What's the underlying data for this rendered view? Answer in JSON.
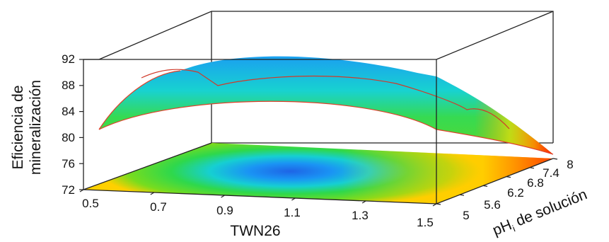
{
  "chart_data": {
    "type": "surface3d",
    "title": "",
    "x_axis": {
      "label": "TWN26",
      "ticks": [
        "0.5",
        "0.7",
        "0.9",
        "1.1",
        "1.3",
        "1.5"
      ],
      "range": [
        0.5,
        1.5
      ]
    },
    "y_axis": {
      "label_main": "pH",
      "label_sub": "i",
      "label_rest": " de solución",
      "ticks": [
        "5",
        "5.6",
        "6.2",
        "6.8",
        "7.4",
        "8"
      ],
      "range": [
        5,
        8
      ]
    },
    "z_axis": {
      "label_line1": "Eficiencia de",
      "label_line2": "mineralización",
      "ticks": [
        "72",
        "76",
        "80",
        "84",
        "88",
        "92"
      ],
      "range": [
        72,
        92
      ]
    },
    "surface_front_edge_pH5": [
      {
        "x": 0.5,
        "z": 80.8
      },
      {
        "x": 0.7,
        "z": 84.2
      },
      {
        "x": 0.9,
        "z": 86.0
      },
      {
        "x": 1.1,
        "z": 86.5
      },
      {
        "x": 1.3,
        "z": 85.2
      },
      {
        "x": 1.5,
        "z": 82.2
      }
    ],
    "surface_left_edge_TWN0_5": [
      {
        "y": 5,
        "z": 80.8
      },
      {
        "y": 6.2,
        "z": 84.8
      },
      {
        "y": 7.4,
        "z": 87.6
      },
      {
        "y": 8,
        "z": 88.6
      }
    ],
    "surface_right_edge_TWN1_5": [
      {
        "y": 5,
        "z": 82.2
      },
      {
        "y": 6.2,
        "z": 80.5
      },
      {
        "y": 7.4,
        "z": 76.8
      },
      {
        "y": 8,
        "z": 73.4
      }
    ],
    "surface_max_approx": {
      "x": 1.05,
      "y": 7.0,
      "z": 91.5
    },
    "colormap": [
      "#ff0000",
      "#ff8800",
      "#ffee00",
      "#33dd22",
      "#00d9c8",
      "#1a8cff",
      "#1e5fe0"
    ]
  }
}
